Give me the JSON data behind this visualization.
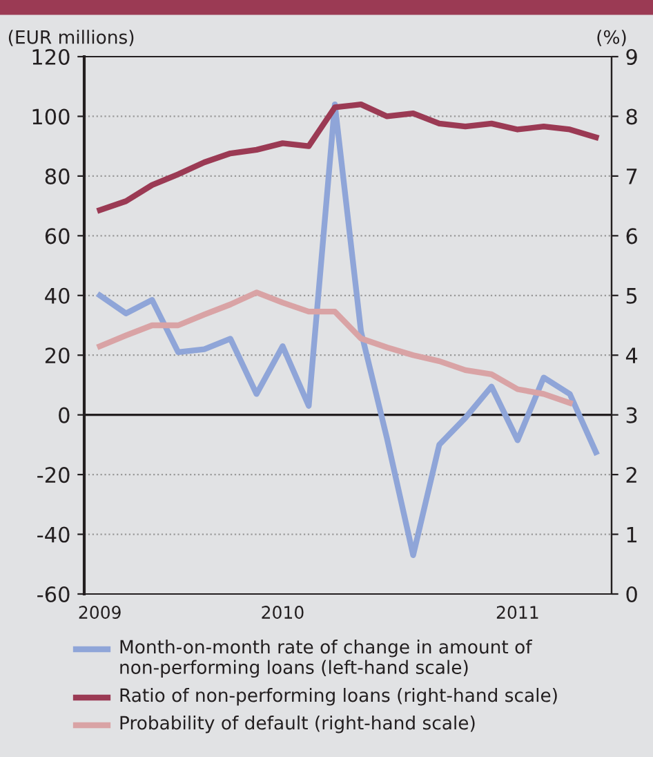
{
  "chart_data": {
    "type": "line",
    "ylabel": "(EUR millions)",
    "y2label": "(%)",
    "categories": [
      "2009",
      null,
      null,
      null,
      null,
      null,
      null,
      "2010",
      null,
      null,
      null,
      null,
      null,
      null,
      null,
      null,
      "2011",
      null,
      null,
      null
    ],
    "series": [
      {
        "name": "Month-on-month rate of change in amount of non-performing loans (left-hand scale)",
        "color": "#8fa5d8",
        "values": [
          40,
          34,
          38.5,
          21,
          22,
          25.5,
          7,
          23,
          3,
          104,
          28,
          -8,
          -47,
          -10,
          -1,
          9.5,
          -8.5,
          12.5,
          7,
          -12.5
        ]
      },
      {
        "name": "Ratio of non-performing loans (right-hand scale)",
        "color": "#9b3a54",
        "axis": "y2",
        "values": [
          6.43,
          6.58,
          6.85,
          7.03,
          7.23,
          7.38,
          7.44,
          7.55,
          7.5,
          8.15,
          8.2,
          8.0,
          8.05,
          7.88,
          7.83,
          7.88,
          7.78,
          7.83,
          7.78,
          7.65
        ]
      },
      {
        "name": "Probability of default (right-hand scale)",
        "color": "#d9a3a5",
        "axis": "y2",
        "values": [
          4.15,
          4.33,
          4.5,
          4.5,
          4.68,
          4.85,
          5.05,
          4.88,
          4.73,
          4.73,
          4.28,
          4.13,
          4.0,
          3.9,
          3.75,
          3.68,
          3.43,
          3.35,
          3.2,
          null
        ]
      }
    ],
    "ylim": [
      -60,
      120
    ],
    "yticks": [
      -60,
      -40,
      -20,
      0,
      20,
      40,
      60,
      80,
      100,
      120
    ],
    "y2lim": [
      0,
      9
    ],
    "y2ticks": [
      0,
      1,
      2,
      3,
      4,
      5,
      6,
      7,
      8,
      9
    ],
    "ref_lines": [
      {
        "axis": "y",
        "value": 0,
        "color": "#231f20"
      }
    ],
    "grid": "y",
    "legend": "bottom",
    "marker": "none",
    "line_style": "solid"
  }
}
